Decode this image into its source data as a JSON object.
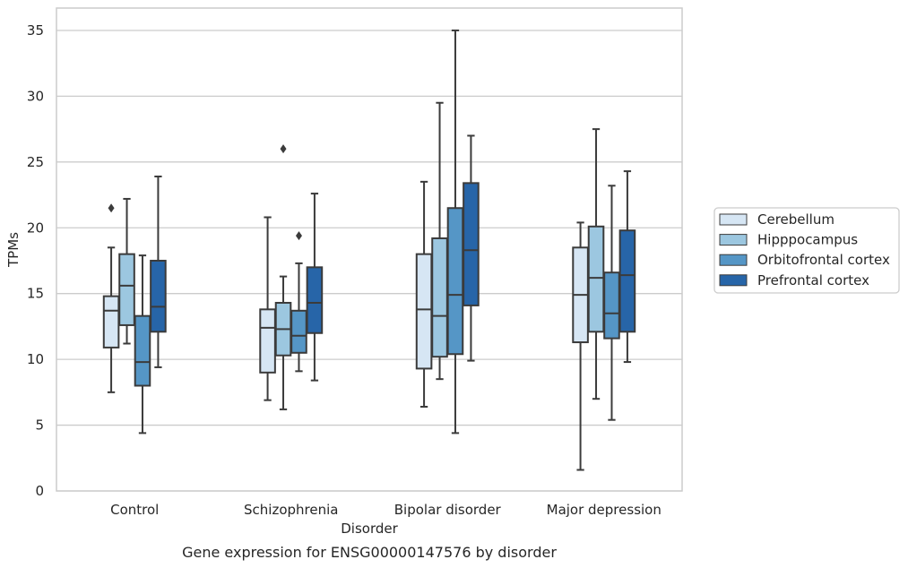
{
  "chart_data": {
    "type": "box",
    "caption": "Gene expression for ENSG00000147576 by disorder",
    "xlabel": "Disorder",
    "ylabel": "TPMs",
    "ylim": [
      0,
      36.7
    ],
    "yticks": [
      0,
      5,
      10,
      15,
      20,
      25,
      30,
      35
    ],
    "grid": "horizontal",
    "legend_position": "right",
    "categories": [
      "Control",
      "Schizophrenia",
      "Bipolar disorder",
      "Major depression"
    ],
    "series": [
      {
        "name": "Cerebellum",
        "color": "#d6e6f4",
        "boxes": [
          {
            "whislo": 7.5,
            "q1": 10.9,
            "med": 13.7,
            "q3": 14.8,
            "whishi": 18.5,
            "fliers": [
              21.5
            ]
          },
          {
            "whislo": 6.9,
            "q1": 9.0,
            "med": 12.4,
            "q3": 13.8,
            "whishi": 20.8,
            "fliers": []
          },
          {
            "whislo": 6.4,
            "q1": 9.3,
            "med": 13.8,
            "q3": 18.0,
            "whishi": 23.5,
            "fliers": []
          },
          {
            "whislo": 1.6,
            "q1": 11.3,
            "med": 14.9,
            "q3": 18.5,
            "whishi": 20.4,
            "fliers": []
          }
        ]
      },
      {
        "name": "Hipppocampus",
        "color": "#9cc7e0",
        "boxes": [
          {
            "whislo": 11.2,
            "q1": 12.6,
            "med": 15.6,
            "q3": 18.0,
            "whishi": 22.2,
            "fliers": []
          },
          {
            "whislo": 6.2,
            "q1": 10.3,
            "med": 12.3,
            "q3": 14.3,
            "whishi": 16.3,
            "fliers": [
              26.0
            ]
          },
          {
            "whislo": 8.5,
            "q1": 10.2,
            "med": 13.3,
            "q3": 19.2,
            "whishi": 29.5,
            "fliers": []
          },
          {
            "whislo": 7.0,
            "q1": 12.1,
            "med": 16.2,
            "q3": 20.1,
            "whishi": 27.5,
            "fliers": []
          }
        ]
      },
      {
        "name": "Orbitofrontal cortex",
        "color": "#5596c6",
        "boxes": [
          {
            "whislo": 4.4,
            "q1": 8.0,
            "med": 9.8,
            "q3": 13.3,
            "whishi": 17.9,
            "fliers": []
          },
          {
            "whislo": 9.1,
            "q1": 10.5,
            "med": 11.8,
            "q3": 13.7,
            "whishi": 17.3,
            "fliers": [
              19.4
            ]
          },
          {
            "whislo": 4.4,
            "q1": 10.4,
            "med": 14.9,
            "q3": 21.5,
            "whishi": 35.0,
            "fliers": []
          },
          {
            "whislo": 5.4,
            "q1": 11.6,
            "med": 13.5,
            "q3": 16.6,
            "whishi": 23.2,
            "fliers": []
          }
        ]
      },
      {
        "name": "Prefrontal cortex",
        "color": "#2765a8",
        "boxes": [
          {
            "whislo": 9.4,
            "q1": 12.1,
            "med": 14.0,
            "q3": 17.5,
            "whishi": 23.9,
            "fliers": []
          },
          {
            "whislo": 8.4,
            "q1": 12.0,
            "med": 14.3,
            "q3": 17.0,
            "whishi": 22.6,
            "fliers": []
          },
          {
            "whislo": 9.9,
            "q1": 14.1,
            "med": 18.3,
            "q3": 23.4,
            "whishi": 27.0,
            "fliers": []
          },
          {
            "whislo": 9.8,
            "q1": 12.1,
            "med": 16.4,
            "q3": 19.8,
            "whishi": 24.3,
            "fliers": []
          }
        ]
      }
    ]
  }
}
